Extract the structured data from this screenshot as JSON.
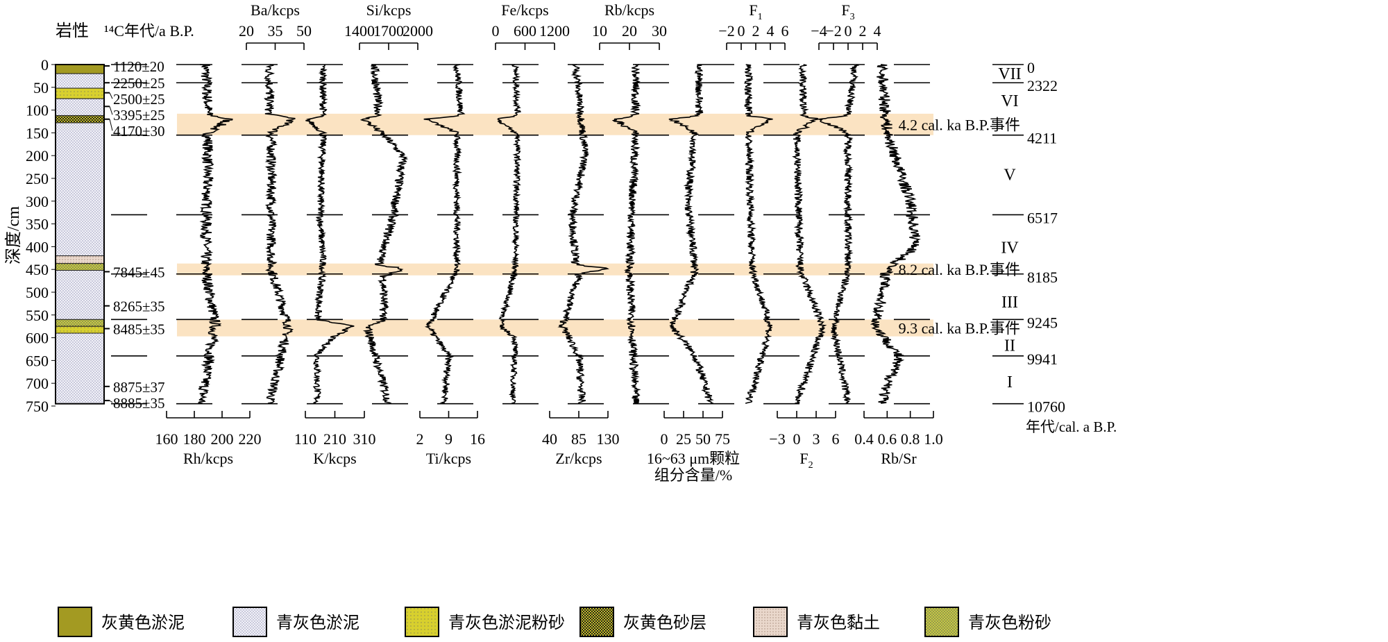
{
  "chart_data": {
    "type": "line",
    "orientation": "depth-profile",
    "ylabel": "深度/cm",
    "ylim": [
      0,
      750
    ],
    "yticks": [
      0,
      50,
      100,
      150,
      200,
      250,
      300,
      350,
      400,
      450,
      500,
      550,
      600,
      650,
      700,
      750
    ],
    "lithology_title": "岩性",
    "dates_title": "¹⁴C年代/a B.P.",
    "dates": [
      {
        "depth": 3,
        "label": "1120±20"
      },
      {
        "depth": 40,
        "label": "2250±25"
      },
      {
        "depth": 62,
        "label": "2500±25"
      },
      {
        "depth": 92,
        "label": "3395±25"
      },
      {
        "depth": 120,
        "label": "4170±30"
      },
      {
        "depth": 455,
        "label": "7845±45"
      },
      {
        "depth": 530,
        "label": "8265±35"
      },
      {
        "depth": 580,
        "label": "8485±35"
      },
      {
        "depth": 707,
        "label": "8875±37"
      },
      {
        "depth": 738,
        "label": "8885±35"
      }
    ],
    "lithology": [
      {
        "from": 0,
        "to": 20,
        "type": 0
      },
      {
        "from": 20,
        "to": 52,
        "type": 1
      },
      {
        "from": 52,
        "to": 75,
        "type": 2
      },
      {
        "from": 75,
        "to": 112,
        "type": 1
      },
      {
        "from": 112,
        "to": 128,
        "type": 3
      },
      {
        "from": 128,
        "to": 420,
        "type": 1
      },
      {
        "from": 420,
        "to": 437,
        "type": 4
      },
      {
        "from": 437,
        "to": 452,
        "type": 5
      },
      {
        "from": 452,
        "to": 560,
        "type": 1
      },
      {
        "from": 560,
        "to": 575,
        "type": 5
      },
      {
        "from": 575,
        "to": 590,
        "type": 2
      },
      {
        "from": 590,
        "to": 745,
        "type": 1
      }
    ],
    "events": [
      {
        "from": 108,
        "to": 155,
        "label": "4.2 cal. ka B.P.事件"
      },
      {
        "from": 437,
        "to": 463,
        "label": "8.2 cal. ka B.P.事件"
      },
      {
        "from": 560,
        "to": 597,
        "label": "9.3 cal. ka B.P.事件"
      }
    ],
    "age_boundaries": [
      {
        "depth": 0,
        "age": "0"
      },
      {
        "depth": 40,
        "age": "2322"
      },
      {
        "depth": 155,
        "age": "4211"
      },
      {
        "depth": 330,
        "age": "6517"
      },
      {
        "depth": 460,
        "age": "8185"
      },
      {
        "depth": 560,
        "age": "9245"
      },
      {
        "depth": 640,
        "age": "9941"
      },
      {
        "depth": 745,
        "age": "10760"
      }
    ],
    "age_axis_label": "年代/cal. a B.P.",
    "zones": [
      {
        "depth": 18,
        "label": "VII"
      },
      {
        "depth": 78,
        "label": "VI"
      },
      {
        "depth": 240,
        "label": "V"
      },
      {
        "depth": 400,
        "label": "IV"
      },
      {
        "depth": 520,
        "label": "III"
      },
      {
        "depth": 615,
        "label": "II"
      },
      {
        "depth": 695,
        "label": "I"
      }
    ],
    "series": [
      {
        "name": "Rh/kcps",
        "axis": "bottom",
        "range": [
          160,
          220
        ],
        "ticks": [
          "160",
          "180",
          "200",
          "220"
        ],
        "noise": 4,
        "profile": [
          [
            0,
            188
          ],
          [
            110,
            190
          ],
          [
            120,
            205
          ],
          [
            150,
            190
          ],
          [
            450,
            188
          ],
          [
            570,
            195
          ],
          [
            745,
            185
          ]
        ]
      },
      {
        "name": "Ba/kcps",
        "axis": "top",
        "range": [
          20,
          50
        ],
        "ticks": [
          "20",
          "35",
          "50"
        ],
        "noise": 2.5,
        "profile": [
          [
            0,
            32
          ],
          [
            110,
            32
          ],
          [
            118,
            45
          ],
          [
            150,
            33
          ],
          [
            450,
            33
          ],
          [
            575,
            42
          ],
          [
            745,
            32
          ]
        ]
      },
      {
        "name": "K/kcps",
        "axis": "bottom",
        "range": [
          110,
          310
        ],
        "ticks": [
          "110",
          "210",
          "310"
        ],
        "noise": 12,
        "profile": [
          [
            0,
            170
          ],
          [
            112,
            170
          ],
          [
            120,
            115
          ],
          [
            150,
            170
          ],
          [
            330,
            160
          ],
          [
            440,
            170
          ],
          [
            560,
            150
          ],
          [
            575,
            270
          ],
          [
            600,
            200
          ],
          [
            640,
            150
          ],
          [
            745,
            150
          ]
        ]
      },
      {
        "name": "Si/kcps",
        "axis": "top",
        "range": [
          1400,
          2000
        ],
        "ticks": [
          "1400",
          "1700",
          "2000"
        ],
        "noise": 45,
        "profile": [
          [
            0,
            1550
          ],
          [
            110,
            1600
          ],
          [
            120,
            1450
          ],
          [
            155,
            1650
          ],
          [
            200,
            1850
          ],
          [
            330,
            1750
          ],
          [
            440,
            1600
          ],
          [
            448,
            1850
          ],
          [
            465,
            1650
          ],
          [
            560,
            1650
          ],
          [
            575,
            1480
          ],
          [
            745,
            1700
          ]
        ]
      },
      {
        "name": "Ti/kcps",
        "axis": "bottom",
        "range": [
          2,
          16
        ],
        "ticks": [
          "2",
          "9",
          "16"
        ],
        "noise": 0.8,
        "profile": [
          [
            0,
            11
          ],
          [
            112,
            12
          ],
          [
            120,
            3.5
          ],
          [
            150,
            11
          ],
          [
            450,
            11
          ],
          [
            575,
            4
          ],
          [
            640,
            9
          ],
          [
            745,
            8
          ]
        ]
      },
      {
        "name": "Fe/kcps",
        "axis": "top",
        "range": [
          0,
          1200
        ],
        "ticks": [
          "0",
          "600",
          "1200"
        ],
        "noise": 60,
        "profile": [
          [
            0,
            400
          ],
          [
            112,
            450
          ],
          [
            120,
            40
          ],
          [
            155,
            450
          ],
          [
            450,
            400
          ],
          [
            575,
            100
          ],
          [
            600,
            400
          ],
          [
            745,
            350
          ]
        ]
      },
      {
        "name": "Zr/kcps",
        "axis": "bottom",
        "range": [
          40,
          130
        ],
        "ticks": [
          "40",
          "85",
          "130"
        ],
        "noise": 6,
        "profile": [
          [
            0,
            80
          ],
          [
            200,
            95
          ],
          [
            330,
            75
          ],
          [
            440,
            80
          ],
          [
            447,
            130
          ],
          [
            460,
            85
          ],
          [
            575,
            60
          ],
          [
            640,
            85
          ],
          [
            745,
            90
          ]
        ]
      },
      {
        "name": "Rb/kcps",
        "axis": "top",
        "range": [
          10,
          30
        ],
        "ticks": [
          "10",
          "20",
          "30"
        ],
        "noise": 1.4,
        "profile": [
          [
            0,
            22
          ],
          [
            112,
            22
          ],
          [
            120,
            15
          ],
          [
            150,
            22
          ],
          [
            450,
            20
          ],
          [
            745,
            22
          ]
        ]
      },
      {
        "name": "16~63 μm颗粒\n组分含量/%",
        "axis": "bottom",
        "range": [
          0,
          75
        ],
        "ticks": [
          "0",
          "25",
          "50",
          "75"
        ],
        "noise": 5,
        "profile": [
          [
            0,
            45
          ],
          [
            112,
            45
          ],
          [
            120,
            10
          ],
          [
            150,
            40
          ],
          [
            300,
            30
          ],
          [
            450,
            40
          ],
          [
            575,
            10
          ],
          [
            640,
            40
          ],
          [
            745,
            60
          ]
        ]
      },
      {
        "name": "F1",
        "axis": "top",
        "range": [
          -2,
          6
        ],
        "ticks": [
          "−2",
          "0",
          "2",
          "4",
          "6"
        ],
        "noise": 0.5,
        "profile": [
          [
            0,
            1
          ],
          [
            112,
            1
          ],
          [
            120,
            4
          ],
          [
            150,
            1
          ],
          [
            450,
            1.5
          ],
          [
            575,
            4
          ],
          [
            745,
            1
          ]
        ]
      },
      {
        "name": "F2",
        "axis": "bottom",
        "range": [
          -3,
          6
        ],
        "ticks": [
          "−3",
          "0",
          "3",
          "6"
        ],
        "noise": 0.6,
        "profile": [
          [
            0,
            1
          ],
          [
            112,
            1
          ],
          [
            120,
            3
          ],
          [
            150,
            0
          ],
          [
            450,
            0.5
          ],
          [
            575,
            4
          ],
          [
            745,
            0
          ]
        ]
      },
      {
        "name": "F3",
        "axis": "top",
        "range": [
          -4,
          4
        ],
        "ticks": [
          "−4",
          "−2",
          "0",
          "2",
          "4"
        ],
        "noise": 0.5,
        "profile": [
          [
            0,
            1
          ],
          [
            112,
            0
          ],
          [
            120,
            -4
          ],
          [
            150,
            0
          ],
          [
            450,
            0
          ],
          [
            575,
            -2
          ],
          [
            745,
            0
          ]
        ]
      },
      {
        "name": "Rb/Sr",
        "axis": "bottom",
        "range": [
          0.4,
          1.0
        ],
        "ticks": [
          "0.4",
          "0.6",
          "0.8",
          "1.0"
        ],
        "noise": 0.05,
        "profile": [
          [
            0,
            0.55
          ],
          [
            150,
            0.6
          ],
          [
            300,
            0.8
          ],
          [
            400,
            0.85
          ],
          [
            450,
            0.6
          ],
          [
            575,
            0.5
          ],
          [
            640,
            0.7
          ],
          [
            745,
            0.55
          ]
        ]
      }
    ],
    "legend": [
      "灰黄色淤泥",
      "青灰色淤泥",
      "青灰色淤泥粉砂",
      "灰黄色砂层",
      "青灰色黏土",
      "青灰色粉砂"
    ],
    "colors": {
      "event_band": "#fbe3c2",
      "olive": "#a39a22",
      "yellow": "#d8d02e",
      "silt": "#eeeef6",
      "clay": "#ead8cc",
      "green_silt": "#c8cc40"
    }
  }
}
